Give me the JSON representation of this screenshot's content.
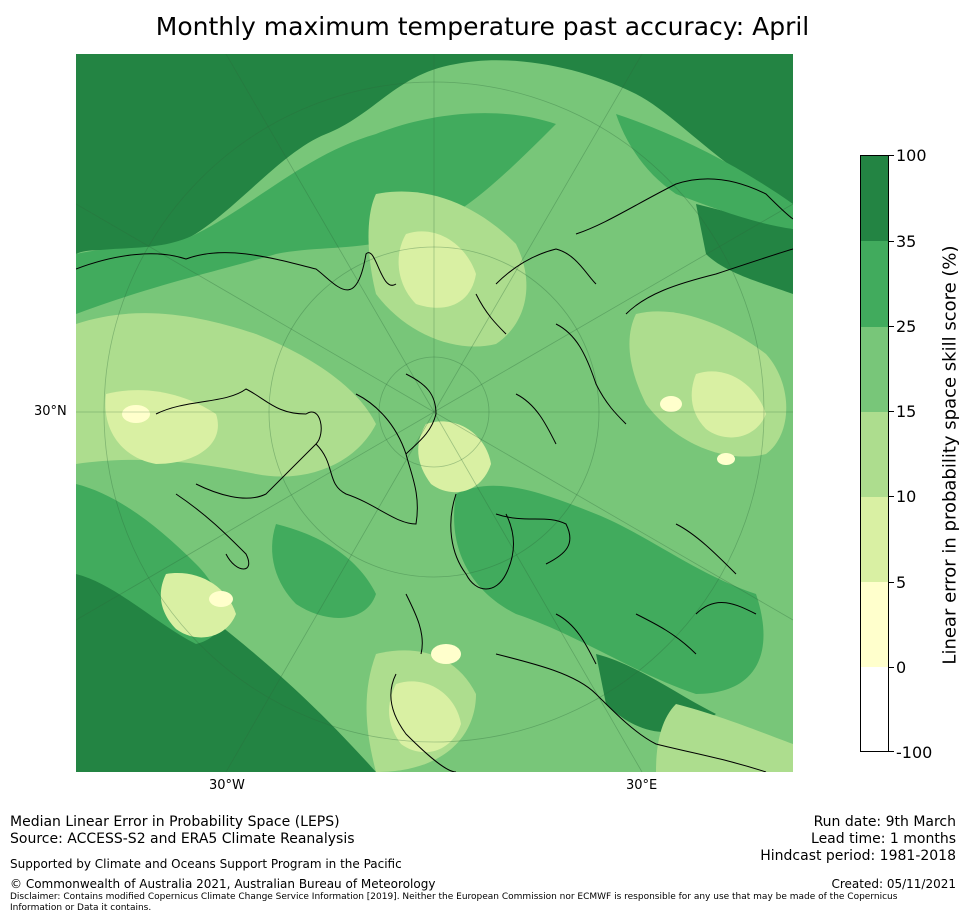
{
  "title": "Monthly maximum temperature past accuracy: April",
  "map": {
    "lat_labels": [
      "30°N"
    ],
    "lon_labels": [
      "30°W",
      "30°E"
    ],
    "projection": "north polar stereographic"
  },
  "colorbar": {
    "label": "Linear error in probability space skill score (%)",
    "ticks": [
      "100",
      "35",
      "25",
      "15",
      "10",
      "5",
      "0",
      "-100"
    ],
    "bins": [
      {
        "range": "35–100",
        "color": "#238443"
      },
      {
        "range": "25–35",
        "color": "#41ab5d"
      },
      {
        "range": "15–25",
        "color": "#78c679"
      },
      {
        "range": "10–15",
        "color": "#addd8e"
      },
      {
        "range": "5–10",
        "color": "#d9f0a3"
      },
      {
        "range": "0–5",
        "color": "#ffffcc"
      },
      {
        "range": "-100–0",
        "color": "#ffffff"
      }
    ]
  },
  "footer": {
    "line1": "Median Linear Error in Probability Space (LEPS)",
    "line2": "Source: ACCESS-S2 and ERA5 Climate Reanalysis",
    "support": "Supported by Climate and Oceans Support Program in the Pacific",
    "copyright": "© Commonwealth of Australia 2021, Australian Bureau of Meteorology",
    "disclaimer1": "Disclaimer: Contains modified Copernicus Climate Change Service Information [2019]. Neither the European Commission nor ECMWF is responsible for any use that may be made of the Copernicus",
    "disclaimer2": "Information or Data it contains.",
    "run_date": "Run date: 9th March",
    "lead_time": "Lead time: 1 months",
    "hindcast": "Hindcast period: 1981-2018",
    "created": "Created: 05/11/2021"
  }
}
